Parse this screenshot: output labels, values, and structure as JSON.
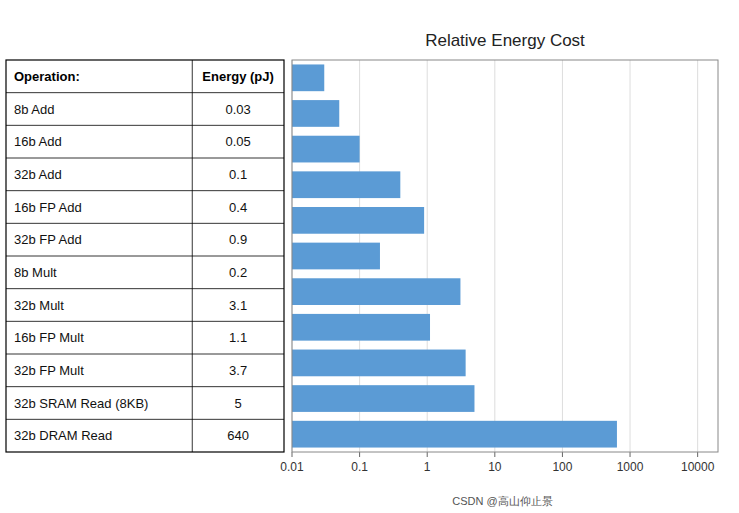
{
  "chart_data": {
    "type": "bar",
    "title": "Relative Energy Cost",
    "orientation": "horizontal",
    "categories": [
      "8b Add",
      "16b Add",
      "32b Add",
      "16b FP Add",
      "32b FP Add",
      "8b Mult",
      "32b Mult",
      "16b FP Mult",
      "32b FP Mult",
      "32b SRAM Read (8KB)",
      "32b DRAM Read"
    ],
    "values": [
      0.03,
      0.05,
      0.1,
      0.4,
      0.9,
      0.2,
      3.1,
      1.1,
      3.7,
      5,
      640
    ],
    "color": "#5B9BD5",
    "log": "x",
    "xlim": [
      0.01,
      20000
    ],
    "xticks": [
      0.01,
      0.1,
      1,
      10,
      100,
      1000,
      10000
    ],
    "grid": true,
    "data_labels": true,
    "annotations": [
      "Operation:",
      "Energy (pJ)",
      "CSDN @高山仰止景"
    ]
  }
}
